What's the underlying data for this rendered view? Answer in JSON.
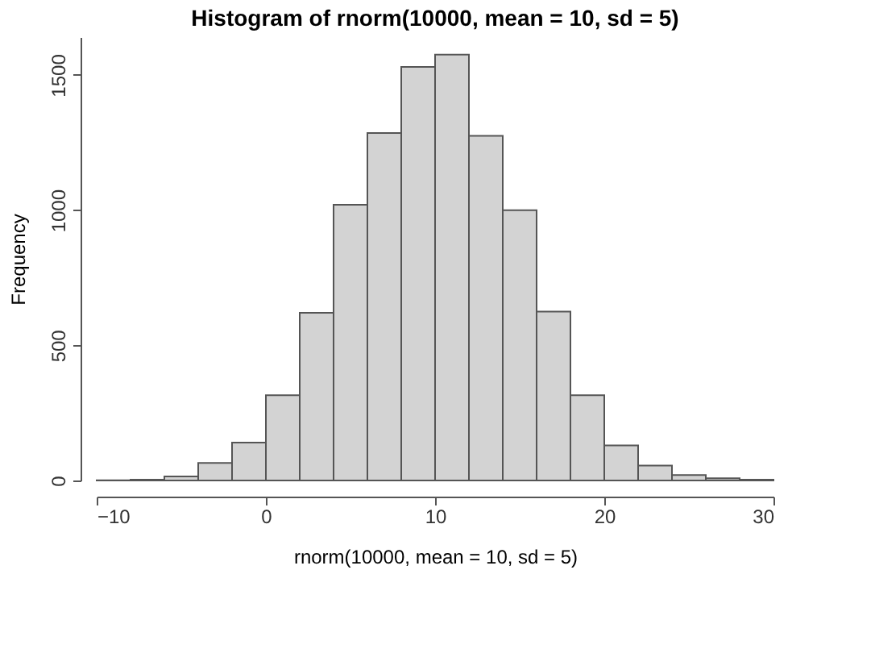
{
  "chart_data": {
    "type": "histogram",
    "title": "Histogram of rnorm(10000, mean = 10, sd = 5)",
    "xlabel": "rnorm(10000, mean = 10, sd = 5)",
    "ylabel": "Frequency",
    "bins": [
      -10,
      -8,
      -6,
      -4,
      -2,
      0,
      2,
      4,
      6,
      8,
      10,
      12,
      14,
      16,
      18,
      20,
      22,
      24,
      26,
      28,
      30
    ],
    "values": [
      1,
      3,
      15,
      65,
      140,
      315,
      620,
      1020,
      1285,
      1530,
      1575,
      1275,
      1000,
      625,
      315,
      130,
      55,
      20,
      8,
      3
    ],
    "color": "#d3d3d3",
    "xlim": [
      -10,
      30
    ],
    "xticks": [
      -10,
      0,
      10,
      20,
      30
    ],
    "ylim": [
      0,
      1640
    ],
    "yticks": [
      0,
      500,
      1000,
      1500
    ],
    "grid": false
  }
}
